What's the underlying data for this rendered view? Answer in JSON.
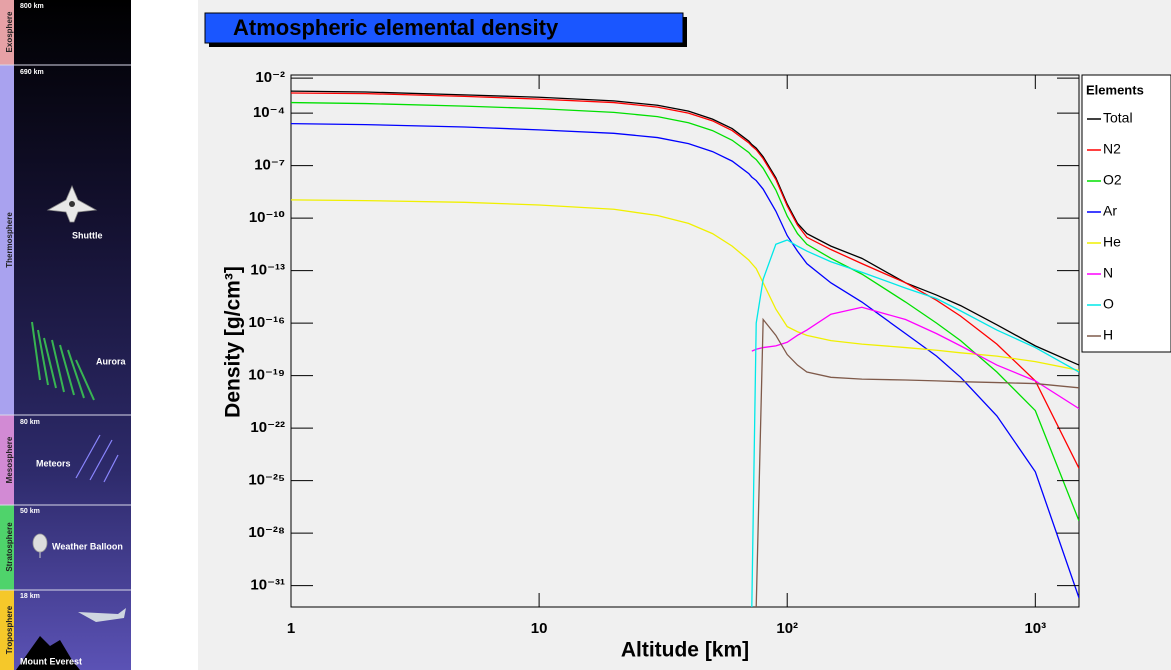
{
  "sidebar": {
    "layers": [
      {
        "name": "Exosphere",
        "altitude": "800 km"
      },
      {
        "name": "Thermosphere",
        "altitude": "690 km"
      },
      {
        "name": "Mesosphere",
        "altitude": "80 km"
      },
      {
        "name": "Stratosphere",
        "altitude": "50 km"
      },
      {
        "name": "Troposphere",
        "altitude": "18 km"
      }
    ],
    "labels": [
      "Shuttle",
      "Aurora",
      "Meteors",
      "Weather Balloon",
      "Mount Everest"
    ]
  },
  "chart_data": {
    "type": "line",
    "title": "Atmospheric elemental density",
    "x_label": "Altitude [km]",
    "y_label": "Density [g/cm³]",
    "x_log": true,
    "y_log": true,
    "xlim": [
      1,
      1500
    ],
    "ylim": [
      6e-33,
      0.015
    ],
    "xticks": [
      1,
      10,
      {
        "value": 100,
        "label": "10²"
      },
      {
        "value": 1000,
        "label": "10³"
      }
    ],
    "yticks": [
      {
        "value": 0.01,
        "label": "10⁻²"
      },
      {
        "value": 0.0001,
        "label": "10⁻⁴"
      },
      {
        "value": 1e-07,
        "label": "10⁻⁷"
      },
      {
        "value": 1e-10,
        "label": "10⁻¹⁰"
      },
      {
        "value": 1e-13,
        "label": "10⁻¹³"
      },
      {
        "value": 1e-16,
        "label": "10⁻¹⁶"
      },
      {
        "value": 1e-19,
        "label": "10⁻¹⁹"
      },
      {
        "value": 1e-22,
        "label": "10⁻²²"
      },
      {
        "value": 1e-25,
        "label": "10⁻²⁵"
      },
      {
        "value": 1e-28,
        "label": "10⁻²⁸"
      },
      {
        "value": 1e-31,
        "label": "10⁻³¹"
      }
    ],
    "legend_title": "Elements",
    "legend": "right",
    "x": [
      1,
      2,
      5,
      10,
      20,
      30,
      40,
      50,
      60,
      70,
      72,
      75,
      80,
      90,
      100,
      110,
      120,
      150,
      200,
      300,
      400,
      500,
      700,
      1000,
      1500
    ],
    "series": [
      {
        "name": "Total",
        "color": "#000000",
        "values": [
          0.0018,
          0.0016,
          0.0011,
          0.0008,
          0.0005,
          0.00028,
          0.00013,
          4.5e-05,
          1.3e-05,
          2.5e-06,
          1.6e-06,
          1e-06,
          3.2e-07,
          2e-08,
          6.3e-10,
          5e-11,
          1.3e-11,
          2.5e-12,
          5e-13,
          2e-14,
          4e-15,
          1e-15,
          8e-17,
          5e-18,
          4e-19
        ]
      },
      {
        "name": "N2",
        "color": "#ff0000",
        "values": [
          0.0014,
          0.0013,
          0.0009,
          0.00063,
          0.0004,
          0.00022,
          0.0001,
          3.6e-05,
          1e-05,
          2e-06,
          1.3e-06,
          8e-07,
          2.5e-07,
          1.6e-08,
          5e-10,
          4e-11,
          8e-12,
          1.6e-12,
          2.5e-13,
          2e-14,
          2e-15,
          2.5e-16,
          6.3e-18,
          5e-20,
          5e-25
        ]
      },
      {
        "name": "O2",
        "color": "#00e000",
        "values": [
          0.0004,
          0.00035,
          0.00025,
          0.00018,
          0.00011,
          6.3e-05,
          2.8e-05,
          1e-05,
          2.8e-06,
          5.6e-07,
          3.5e-07,
          2.2e-07,
          7e-08,
          4e-09,
          1.3e-10,
          1.3e-11,
          3.2e-12,
          5e-13,
          6.3e-14,
          1.6e-15,
          1e-16,
          1e-17,
          1.6e-19,
          1e-21,
          5e-28
        ]
      },
      {
        "name": "Ar",
        "color": "#0000ff",
        "values": [
          2.5e-05,
          2.2e-05,
          1.6e-05,
          1.1e-05,
          7e-06,
          4e-06,
          1.8e-06,
          6.3e-07,
          1.8e-07,
          3.5e-08,
          2.2e-08,
          1.4e-08,
          4.5e-09,
          2.5e-10,
          1e-11,
          1.3e-12,
          2.5e-13,
          2e-14,
          1.6e-15,
          2.5e-17,
          1.3e-18,
          8e-20,
          5e-22,
          3.2e-25,
          2e-32
        ]
      },
      {
        "name": "He",
        "color": "#f0f000",
        "values": [
          1.1e-09,
          1e-09,
          8e-10,
          5.6e-10,
          3.2e-10,
          1.4e-10,
          5e-11,
          1.3e-11,
          2.5e-12,
          4e-13,
          2.5e-13,
          1.3e-13,
          2e-14,
          6.3e-16,
          6.3e-17,
          3.2e-17,
          2e-17,
          1e-17,
          6.3e-18,
          4e-18,
          2.8e-18,
          2e-18,
          1.3e-18,
          6.3e-19,
          2e-19
        ]
      },
      {
        "name": "N",
        "color": "#ff00ff",
        "values": [
          null,
          null,
          null,
          null,
          null,
          null,
          null,
          null,
          null,
          null,
          2.5e-18,
          3.2e-18,
          4e-18,
          5e-18,
          8e-18,
          2e-17,
          4e-17,
          3.2e-16,
          8e-16,
          1.6e-16,
          2.5e-17,
          5e-18,
          4e-19,
          5e-20,
          1.3e-21
        ]
      },
      {
        "name": "O",
        "color": "#00e8e8",
        "values": [
          null,
          null,
          null,
          null,
          null,
          null,
          null,
          null,
          null,
          null,
          6e-33,
          1e-16,
          3.2e-14,
          3.2e-12,
          5.6e-12,
          2.5e-12,
          1.3e-12,
          3.2e-13,
          8e-14,
          1e-14,
          2.5e-15,
          5e-16,
          4e-17,
          4e-18,
          1.6e-19
        ]
      },
      {
        "name": "H",
        "color": "#7f5a4a",
        "values": [
          null,
          null,
          null,
          null,
          null,
          null,
          null,
          null,
          null,
          null,
          null,
          6e-33,
          1.6e-16,
          2e-17,
          1.6e-18,
          4e-19,
          1.6e-19,
          8e-20,
          6.3e-20,
          5.6e-20,
          5e-20,
          4.5e-20,
          4e-20,
          3.5e-20,
          2e-20
        ]
      }
    ]
  }
}
